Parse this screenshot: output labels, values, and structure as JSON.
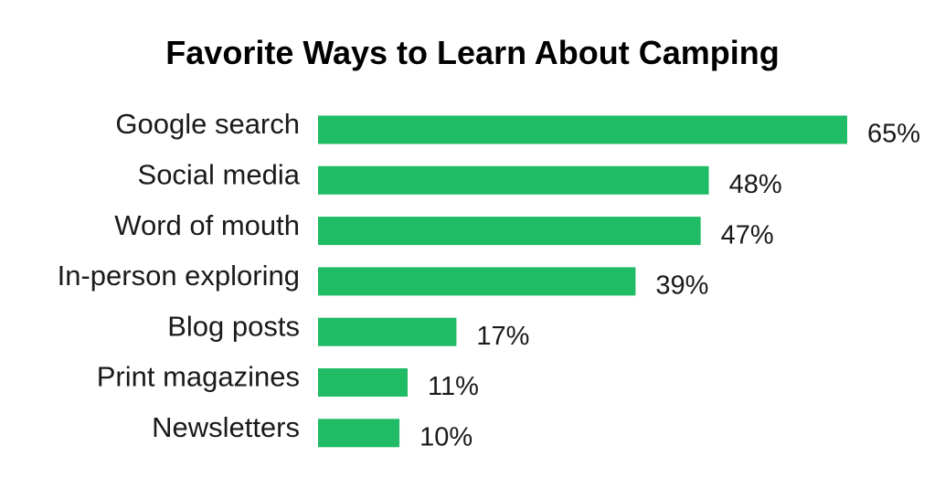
{
  "chart_data": {
    "type": "bar",
    "orientation": "horizontal",
    "title": "Favorite Ways to Learn About Camping",
    "categories": [
      "Google search",
      "Social media",
      "Word of mouth",
      "In-person exploring",
      "Blog posts",
      "Print magazines",
      "Newsletters"
    ],
    "values": [
      65,
      48,
      47,
      39,
      17,
      11,
      10
    ],
    "value_labels": [
      "65%",
      "48%",
      "47%",
      "39%",
      "17%",
      "11%",
      "10%"
    ],
    "unit": "%",
    "xlim": [
      0,
      65
    ],
    "grid": false,
    "legend": "none",
    "bar_color": "#1fbb65"
  }
}
